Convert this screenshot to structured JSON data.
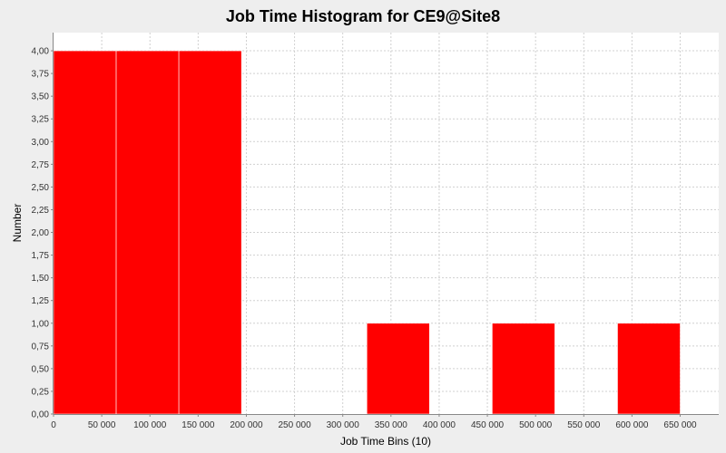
{
  "chart_data": {
    "type": "bar",
    "title": "Job Time Histogram for CE9@Site8",
    "xlabel": "Job Time Bins (10)",
    "ylabel": "Number",
    "xlim": [
      0,
      690000
    ],
    "ylim": [
      0,
      4.2
    ],
    "x_ticks": [
      0,
      50000,
      100000,
      150000,
      200000,
      250000,
      300000,
      350000,
      400000,
      450000,
      500000,
      550000,
      600000,
      650000
    ],
    "x_tick_labels": [
      "0",
      "50 000",
      "100 000",
      "150 000",
      "200 000",
      "250 000",
      "300 000",
      "350 000",
      "400 000",
      "450 000",
      "500 000",
      "550 000",
      "600 000",
      "650 000"
    ],
    "y_ticks": [
      0,
      0.25,
      0.5,
      0.75,
      1,
      1.25,
      1.5,
      1.75,
      2,
      2.25,
      2.5,
      2.75,
      3,
      3.25,
      3.5,
      3.75,
      4
    ],
    "y_tick_labels": [
      "0,00",
      "0,25",
      "0,50",
      "0,75",
      "1,00",
      "1,25",
      "1,50",
      "1,75",
      "2,00",
      "2,25",
      "2,50",
      "2,75",
      "3,00",
      "3,25",
      "3,50",
      "3,75",
      "4,00"
    ],
    "bins": [
      {
        "start": 0,
        "end": 65000,
        "value": 4
      },
      {
        "start": 65000,
        "end": 130000,
        "value": 4
      },
      {
        "start": 130000,
        "end": 195000,
        "value": 4
      },
      {
        "start": 195000,
        "end": 260000,
        "value": 0
      },
      {
        "start": 260000,
        "end": 325000,
        "value": 0
      },
      {
        "start": 325000,
        "end": 390000,
        "value": 1
      },
      {
        "start": 390000,
        "end": 455000,
        "value": 0
      },
      {
        "start": 455000,
        "end": 520000,
        "value": 1
      },
      {
        "start": 520000,
        "end": 585000,
        "value": 0
      },
      {
        "start": 585000,
        "end": 650000,
        "value": 1
      }
    ],
    "bar_color": "#ff0000",
    "grid": true,
    "legend": "none"
  }
}
